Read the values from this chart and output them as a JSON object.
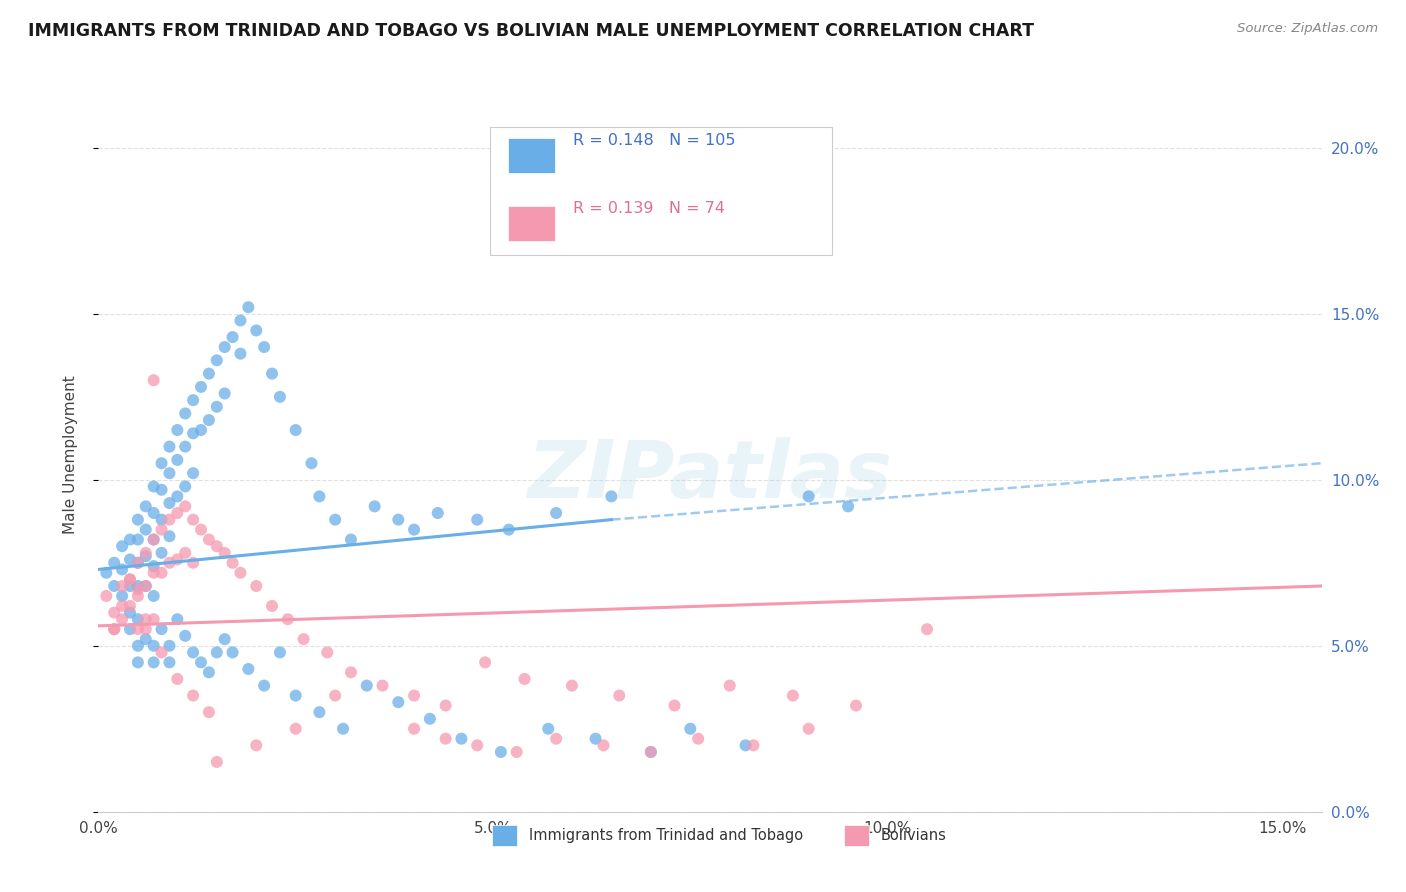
{
  "title": "IMMIGRANTS FROM TRINIDAD AND TOBAGO VS BOLIVIAN MALE UNEMPLOYMENT CORRELATION CHART",
  "source": "Source: ZipAtlas.com",
  "ylabel_label": "Male Unemployment",
  "xlim": [
    0.0,
    0.155
  ],
  "ylim": [
    0.0,
    0.215
  ],
  "legend_entries": [
    {
      "label": "Immigrants from Trinidad and Tobago",
      "color": "#7eb3e8",
      "R": "0.148",
      "N": "105"
    },
    {
      "label": "Bolivians",
      "color": "#f4a0b5",
      "R": "0.139",
      "N": "74"
    }
  ],
  "blue_scatter_x": [
    0.001,
    0.002,
    0.002,
    0.003,
    0.003,
    0.003,
    0.004,
    0.004,
    0.004,
    0.004,
    0.005,
    0.005,
    0.005,
    0.005,
    0.005,
    0.006,
    0.006,
    0.006,
    0.006,
    0.007,
    0.007,
    0.007,
    0.007,
    0.007,
    0.008,
    0.008,
    0.008,
    0.008,
    0.009,
    0.009,
    0.009,
    0.009,
    0.01,
    0.01,
    0.01,
    0.011,
    0.011,
    0.011,
    0.012,
    0.012,
    0.012,
    0.013,
    0.013,
    0.014,
    0.014,
    0.015,
    0.015,
    0.016,
    0.016,
    0.017,
    0.018,
    0.018,
    0.019,
    0.02,
    0.021,
    0.022,
    0.023,
    0.025,
    0.027,
    0.028,
    0.03,
    0.032,
    0.035,
    0.038,
    0.04,
    0.043,
    0.048,
    0.052,
    0.058,
    0.065,
    0.004,
    0.005,
    0.005,
    0.006,
    0.007,
    0.007,
    0.008,
    0.009,
    0.009,
    0.01,
    0.011,
    0.012,
    0.013,
    0.014,
    0.015,
    0.016,
    0.017,
    0.019,
    0.021,
    0.023,
    0.025,
    0.028,
    0.031,
    0.034,
    0.038,
    0.042,
    0.046,
    0.051,
    0.057,
    0.063,
    0.07,
    0.075,
    0.082,
    0.09,
    0.095
  ],
  "blue_scatter_y": [
    0.072,
    0.075,
    0.068,
    0.08,
    0.073,
    0.065,
    0.082,
    0.076,
    0.068,
    0.06,
    0.088,
    0.082,
    0.075,
    0.068,
    0.058,
    0.092,
    0.085,
    0.077,
    0.068,
    0.098,
    0.09,
    0.082,
    0.074,
    0.065,
    0.105,
    0.097,
    0.088,
    0.078,
    0.11,
    0.102,
    0.093,
    0.083,
    0.115,
    0.106,
    0.095,
    0.12,
    0.11,
    0.098,
    0.124,
    0.114,
    0.102,
    0.128,
    0.115,
    0.132,
    0.118,
    0.136,
    0.122,
    0.14,
    0.126,
    0.143,
    0.148,
    0.138,
    0.152,
    0.145,
    0.14,
    0.132,
    0.125,
    0.115,
    0.105,
    0.095,
    0.088,
    0.082,
    0.092,
    0.088,
    0.085,
    0.09,
    0.088,
    0.085,
    0.09,
    0.095,
    0.055,
    0.05,
    0.045,
    0.052,
    0.05,
    0.045,
    0.055,
    0.05,
    0.045,
    0.058,
    0.053,
    0.048,
    0.045,
    0.042,
    0.048,
    0.052,
    0.048,
    0.043,
    0.038,
    0.048,
    0.035,
    0.03,
    0.025,
    0.038,
    0.033,
    0.028,
    0.022,
    0.018,
    0.025,
    0.022,
    0.018,
    0.025,
    0.02,
    0.095,
    0.092
  ],
  "pink_scatter_x": [
    0.001,
    0.002,
    0.002,
    0.003,
    0.003,
    0.004,
    0.004,
    0.005,
    0.005,
    0.005,
    0.006,
    0.006,
    0.006,
    0.007,
    0.007,
    0.007,
    0.008,
    0.008,
    0.009,
    0.009,
    0.01,
    0.01,
    0.011,
    0.011,
    0.012,
    0.012,
    0.013,
    0.014,
    0.015,
    0.016,
    0.017,
    0.018,
    0.02,
    0.022,
    0.024,
    0.026,
    0.029,
    0.032,
    0.036,
    0.04,
    0.044,
    0.049,
    0.054,
    0.06,
    0.066,
    0.073,
    0.08,
    0.088,
    0.096,
    0.105,
    0.04,
    0.044,
    0.048,
    0.053,
    0.058,
    0.064,
    0.07,
    0.076,
    0.083,
    0.09,
    0.03,
    0.025,
    0.02,
    0.015,
    0.01,
    0.012,
    0.014,
    0.007,
    0.008,
    0.006,
    0.005,
    0.004,
    0.003,
    0.002
  ],
  "pink_scatter_y": [
    0.065,
    0.06,
    0.055,
    0.068,
    0.058,
    0.07,
    0.062,
    0.075,
    0.067,
    0.055,
    0.078,
    0.068,
    0.055,
    0.082,
    0.072,
    0.058,
    0.085,
    0.072,
    0.088,
    0.075,
    0.09,
    0.076,
    0.092,
    0.078,
    0.088,
    0.075,
    0.085,
    0.082,
    0.08,
    0.078,
    0.075,
    0.072,
    0.068,
    0.062,
    0.058,
    0.052,
    0.048,
    0.042,
    0.038,
    0.035,
    0.032,
    0.045,
    0.04,
    0.038,
    0.035,
    0.032,
    0.038,
    0.035,
    0.032,
    0.055,
    0.025,
    0.022,
    0.02,
    0.018,
    0.022,
    0.02,
    0.018,
    0.022,
    0.02,
    0.025,
    0.035,
    0.025,
    0.02,
    0.015,
    0.04,
    0.035,
    0.03,
    0.13,
    0.048,
    0.058,
    0.065,
    0.07,
    0.062,
    0.055
  ],
  "blue_line": {
    "x0": 0.0,
    "x1": 0.065,
    "y0": 0.073,
    "y1": 0.088
  },
  "blue_dash_line": {
    "x0": 0.065,
    "x1": 0.155,
    "y0": 0.088,
    "y1": 0.105
  },
  "pink_line": {
    "x0": 0.0,
    "x1": 0.155,
    "y0": 0.056,
    "y1": 0.068
  },
  "blue_color": "#6aaee8",
  "pink_color": "#f599b0",
  "watermark_text": "ZIPatlas",
  "background_color": "#ffffff",
  "grid_color": "#e0e0e0"
}
